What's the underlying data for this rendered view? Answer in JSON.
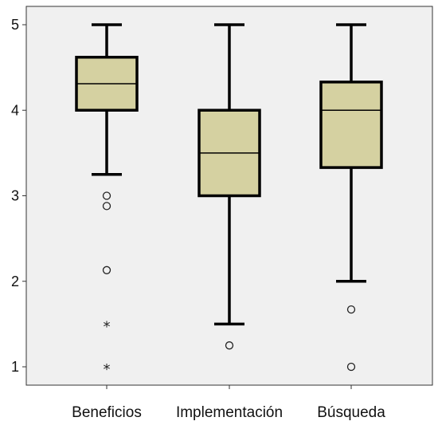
{
  "chart_data": {
    "type": "boxplot",
    "title": "",
    "xlabel": "",
    "ylabel": "",
    "ylim": [
      0.8,
      5.2
    ],
    "yticks": [
      1,
      2,
      3,
      4,
      5
    ],
    "grid": false,
    "categories": [
      "Beneficios",
      "Implementación",
      "Búsqueda"
    ],
    "boxes": [
      {
        "category": "Beneficios",
        "whisker_low": 3.25,
        "q1": 4.0,
        "median": 4.31,
        "q3": 4.62,
        "whisker_high": 5.0,
        "outliers": [
          3.0,
          2.88,
          2.13
        ],
        "extremes": [
          1.5,
          1.0
        ]
      },
      {
        "category": "Implementación",
        "whisker_low": 1.5,
        "q1": 3.0,
        "median": 3.5,
        "q3": 4.0,
        "whisker_high": 5.0,
        "outliers": [
          1.25
        ],
        "extremes": []
      },
      {
        "category": "Búsqueda",
        "whisker_low": 2.0,
        "q1": 3.33,
        "median": 4.0,
        "q3": 4.33,
        "whisker_high": 5.0,
        "outliers": [
          1.67,
          1.0
        ],
        "extremes": []
      }
    ],
    "colors": {
      "plot_background": "#f0f0f0",
      "box_fill": "#d5d1a1",
      "line": "#000000"
    }
  }
}
